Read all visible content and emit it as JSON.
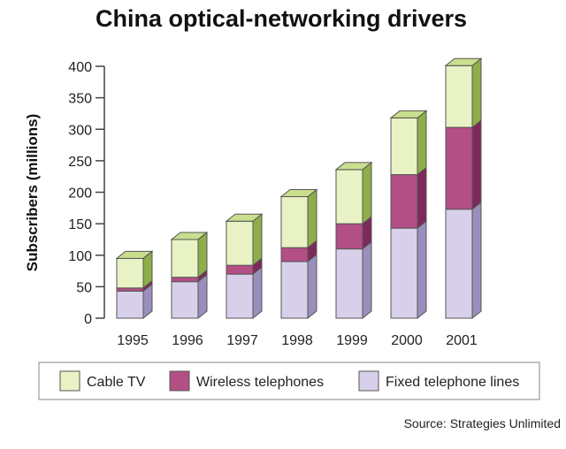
{
  "chart_data": {
    "type": "bar",
    "stacked": true,
    "three_d": true,
    "title": "China optical-networking drivers",
    "ylabel": "Subscribers (millions)",
    "xlabel": "",
    "ylim": [
      0,
      400
    ],
    "yticks": [
      0,
      50,
      100,
      150,
      200,
      250,
      300,
      350,
      400
    ],
    "categories": [
      "1995",
      "1996",
      "1997",
      "1998",
      "1999",
      "2000",
      "2001"
    ],
    "series": [
      {
        "name": "Fixed telephone lines",
        "values": [
          43,
          58,
          70,
          90,
          110,
          143,
          173
        ],
        "color": "#d8d0ea",
        "side": "#9a8fbc",
        "top": "#ebe6f5"
      },
      {
        "name": "Wireless telephones",
        "values": [
          5,
          7,
          14,
          22,
          40,
          85,
          130
        ],
        "color": "#b34f85",
        "side": "#7d2a5a",
        "top": "#cc7aa6"
      },
      {
        "name": "Cable TV",
        "values": [
          47,
          60,
          70,
          81,
          86,
          90,
          98
        ],
        "color": "#e8f2c4",
        "side": "#8fae4a",
        "top": "#c9df8e"
      }
    ],
    "legend": {
      "position": "bottom",
      "items": [
        "Cable TV",
        "Wireless telephones",
        "Fixed telephone lines"
      ]
    },
    "source": "Source: Strategies Unlimited",
    "grid": false
  }
}
